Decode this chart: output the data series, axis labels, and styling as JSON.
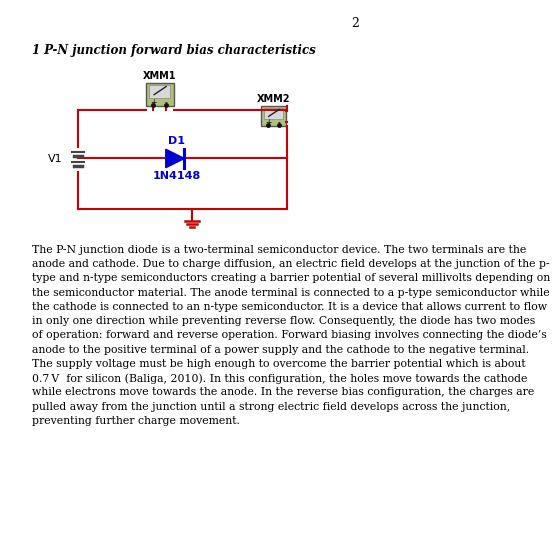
{
  "page_number": "2",
  "heading": "1 P-N junction forward bias characteristics",
  "circuit": {
    "wire_color": "#cc0000",
    "diode_color": "#0000cc",
    "diode_label": "D1",
    "diode_model": "1N4148",
    "battery_label": "V1",
    "meter1_label": "XMM1",
    "meter2_label": "XMM2"
  },
  "paragraph_lines": [
    "The P-N junction diode is a two-terminal semiconductor device. The two terminals are the",
    "anode and cathode. Due to charge diffusion, an electric field develops at the junction of the p-",
    "type and n-type semiconductors creating a barrier potential of several millivolts depending on",
    "the semiconductor material. The anode terminal is connected to a p-type semiconductor while",
    "the cathode is connected to an n-type semiconductor. It is a device that allows current to flow",
    "in only one direction while preventing reverse flow. Consequently, the diode has two modes",
    "of operation: forward and reverse operation. Forward biasing involves connecting the diode’s",
    "anode to the positive terminal of a power supply and the cathode to the negative terminal.",
    "The supply voltage must be high enough to overcome the barrier potential which is about",
    "0.7 V  for silicon (Baliga, 2010). In this configuration, the holes move towards the cathode",
    "while electrons move towards the anode. In the reverse bias configuration, the charges are",
    "pulled away from the junction until a strong electric field develops across the junction,",
    "preventing further charge movement."
  ],
  "bg_color": "#ffffff",
  "text_color": "#000000",
  "font_size_heading": 8.5,
  "font_size_body": 7.8,
  "font_size_page": 9
}
